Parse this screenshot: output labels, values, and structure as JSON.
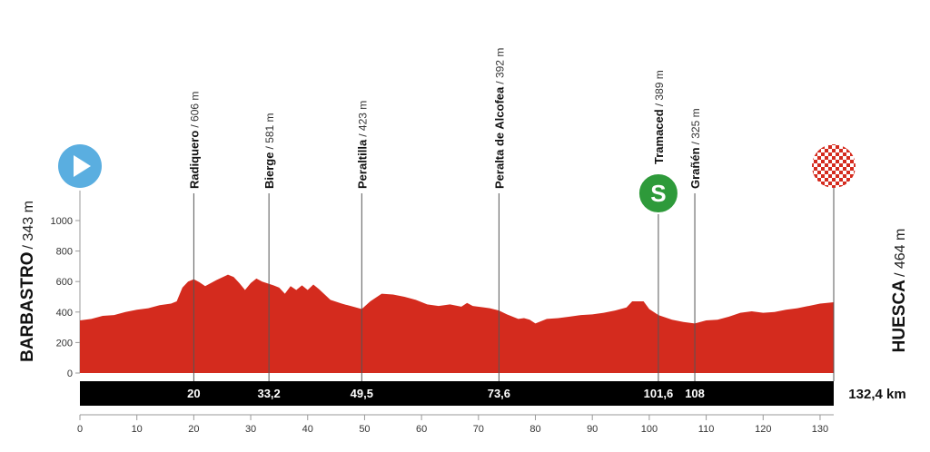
{
  "chart_data": {
    "type": "area",
    "color": "#d42b1e",
    "start": {
      "name": "BARBASTRO",
      "detail": "/ 343 m"
    },
    "finish": {
      "name": "HUESCA",
      "detail": "/ 464 m"
    },
    "waypoints": [
      {
        "name": "Radiquero",
        "detail": "/ 606 m",
        "km": 20
      },
      {
        "name": "Bierge",
        "detail": "/ 581 m",
        "km": {
          "value": 33.2,
          "label": "33,2"
        }
      },
      {
        "name": "Peraltilla",
        "detail": "/ 423 m",
        "km": {
          "value": 49.5,
          "label": "49,5"
        }
      },
      {
        "name": "Peralta de Alcofea",
        "detail": "/ 392 m",
        "km": {
          "value": 73.6,
          "label": "73,6"
        }
      },
      {
        "name": "Tramaced",
        "detail": "/ 389 m",
        "km": {
          "value": 101.6,
          "label": "101,6"
        },
        "sprint": "S"
      },
      {
        "name": "Grañén",
        "detail": "/ 325 m",
        "km": 108
      }
    ],
    "finish_km": {
      "value": 132.4,
      "label": "132,4 km"
    },
    "profile": {
      "x": [
        0,
        2,
        4,
        6,
        8,
        10,
        12,
        14,
        16,
        17,
        18,
        19,
        20,
        21,
        22,
        24,
        26,
        27,
        28,
        29,
        30,
        31,
        32,
        34,
        35,
        36,
        37,
        38,
        39,
        40,
        41,
        42,
        44,
        46,
        48,
        49.5,
        51,
        53,
        55,
        57,
        59,
        61,
        63,
        65,
        67,
        68,
        69,
        71,
        72,
        73.6,
        75,
        77,
        78,
        79,
        80,
        82,
        84,
        86,
        88,
        90,
        92,
        94,
        96,
        97,
        99,
        100,
        101.6,
        104,
        106,
        108,
        110,
        112,
        114,
        116,
        118,
        120,
        122,
        124,
        126,
        128,
        130,
        132.4
      ],
      "y": [
        345,
        355,
        375,
        380,
        400,
        415,
        425,
        445,
        455,
        470,
        560,
        600,
        615,
        595,
        570,
        610,
        645,
        630,
        590,
        545,
        590,
        620,
        600,
        575,
        560,
        520,
        570,
        545,
        575,
        545,
        580,
        550,
        480,
        455,
        435,
        420,
        470,
        520,
        515,
        500,
        480,
        450,
        440,
        450,
        435,
        460,
        440,
        430,
        425,
        410,
        385,
        355,
        360,
        350,
        325,
        355,
        360,
        370,
        380,
        385,
        395,
        410,
        430,
        470,
        470,
        420,
        380,
        350,
        335,
        325,
        345,
        350,
        370,
        395,
        405,
        395,
        400,
        415,
        425,
        440,
        455,
        464
      ]
    },
    "xlim": [
      0,
      132.4
    ],
    "xticks": [
      0,
      10,
      20,
      30,
      40,
      50,
      60,
      70,
      80,
      90,
      100,
      110,
      120,
      130
    ],
    "ylim": [
      0,
      1000
    ],
    "yticks": [
      0,
      200,
      400,
      600,
      800,
      1000
    ]
  }
}
